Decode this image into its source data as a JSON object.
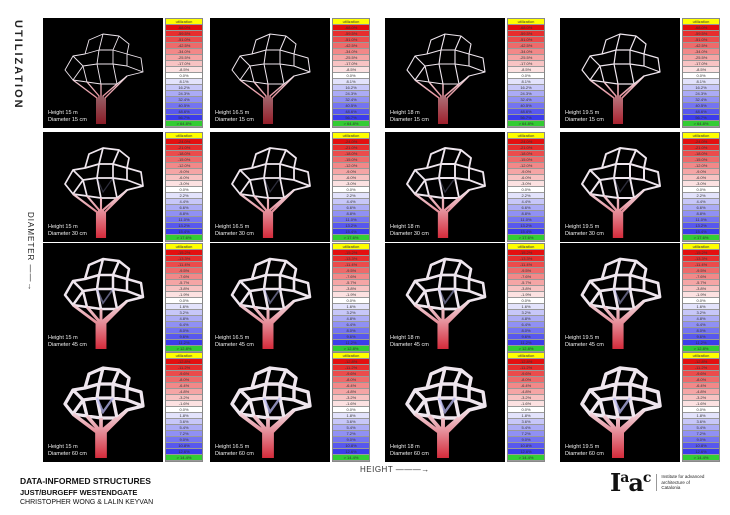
{
  "axis_labels": {
    "utilization": "UTILIZATION",
    "diameter": "DIAMETER ——→",
    "height": "HEIGHT ———→"
  },
  "legend_header": "utilization",
  "colors": {
    "header": "#ffff00",
    "footer": "#33cc33",
    "negative": "#e41010",
    "zero": "#ffffff",
    "positive": "#2020e8",
    "panel_bg": "#000000"
  },
  "rows": [
    {
      "legend": [
        "-68.0%",
        "-59.5%",
        "-51.0%",
        "-42.5%",
        "-34.0%",
        "-25.5%",
        "-17.0%",
        "-8.5%",
        "0.0%",
        "8.1%",
        "16.2%",
        "24.3%",
        "32.4%",
        "40.5%",
        "48.6%",
        "56.7%",
        "> 64.8%"
      ],
      "panels": [
        {
          "height": "Height 15 m",
          "diameter": "Diameter 15 cm"
        },
        {
          "height": "Height 16.5 m",
          "diameter": "Diameter 15 cm"
        },
        {
          "height": "Height 18 m",
          "diameter": "Diameter 15 cm"
        },
        {
          "height": "Height 19.5 m",
          "diameter": "Diameter 15 cm"
        }
      ]
    },
    {
      "legend": [
        "-24.0%",
        "-21.0%",
        "-18.0%",
        "-15.0%",
        "-12.0%",
        "-9.0%",
        "-6.0%",
        "-3.0%",
        "0.0%",
        "2.2%",
        "4.4%",
        "6.6%",
        "8.8%",
        "11.0%",
        "13.2%",
        "15.4%",
        "> 17.6%"
      ],
      "panels": [
        {
          "height": "Height 15 m",
          "diameter": "Diameter 30 cm"
        },
        {
          "height": "Height 16.5 m",
          "diameter": "Diameter 30 cm"
        },
        {
          "height": "Height 18 m",
          "diameter": "Diameter 30 cm"
        },
        {
          "height": "Height 19.5 m",
          "diameter": "Diameter 30 cm"
        }
      ]
    },
    {
      "legend": [
        "-15.2%",
        "-13.3%",
        "-11.4%",
        "-9.5%",
        "-7.6%",
        "-5.7%",
        "-3.8%",
        "-1.9%",
        "0.0%",
        "1.6%",
        "3.2%",
        "4.8%",
        "6.4%",
        "8.0%",
        "9.6%",
        "11.2%",
        "> 12.8%"
      ],
      "panels": [
        {
          "height": "Height 15 m",
          "diameter": "Diameter 45 cm"
        },
        {
          "height": "Height 16.5 m",
          "diameter": "Diameter 45 cm"
        },
        {
          "height": "Height 18 m",
          "diameter": "Diameter 45 cm"
        },
        {
          "height": "Height 19.5 m",
          "diameter": "Diameter 45 cm"
        }
      ]
    },
    {
      "legend": [
        "-12.8%",
        "-11.2%",
        "-9.6%",
        "-8.0%",
        "-6.4%",
        "-4.8%",
        "-3.2%",
        "-1.6%",
        "0.0%",
        "1.8%",
        "3.6%",
        "5.4%",
        "7.2%",
        "9.0%",
        "10.8%",
        "12.6%",
        "> 14.4%"
      ],
      "panels": [
        {
          "height": "Height 15 m",
          "diameter": "Diameter 60 cm"
        },
        {
          "height": "Height 16.5 m",
          "diameter": "Diameter 60 cm"
        },
        {
          "height": "Height 18 m",
          "diameter": "Diameter 60 cm"
        },
        {
          "height": "Height 19.5 m",
          "diameter": "Diameter 60 cm"
        }
      ]
    }
  ],
  "title": {
    "line1": "DATA-INFORMED STRUCTURES",
    "line2": "JUST/BURGEFF WESTENDGATE",
    "line3": "CHRISTOPHER WONG & LALIN KEYVAN"
  },
  "logo": {
    "mark": "Iaac",
    "text": "Institute for advanced architecture of Catalonia"
  }
}
